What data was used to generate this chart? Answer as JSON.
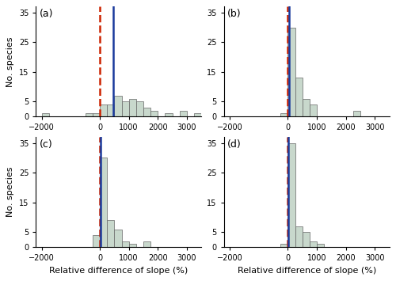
{
  "panels": [
    {
      "label": "(a)",
      "bin_edges": [
        -2000,
        -1750,
        -1500,
        -1250,
        -1000,
        -750,
        -500,
        -250,
        0,
        250,
        500,
        750,
        1000,
        1250,
        1500,
        1750,
        2000,
        2250,
        2500,
        2750,
        3000,
        3250,
        3500
      ],
      "counts": [
        1,
        0,
        0,
        0,
        0,
        0,
        1,
        1,
        4,
        4,
        7,
        5,
        6,
        5,
        3,
        2,
        0,
        1,
        0,
        2,
        0,
        1
      ],
      "red_line": 0,
      "blue_line": 450,
      "xlim": [
        -2200,
        3500
      ],
      "xticks": [
        -2000,
        0,
        1000,
        2000,
        3000
      ],
      "show_xlabel": false,
      "show_ylabel": true
    },
    {
      "label": "(b)",
      "bin_edges": [
        -2000,
        -1750,
        -1500,
        -1250,
        -1000,
        -750,
        -500,
        -250,
        0,
        250,
        500,
        750,
        1000,
        1250,
        1500,
        1750,
        2000,
        2250,
        2500,
        2750,
        3000,
        3250,
        3500
      ],
      "counts": [
        0,
        0,
        0,
        0,
        0,
        0,
        0,
        1,
        30,
        13,
        6,
        4,
        0,
        0,
        0,
        0,
        0,
        2,
        0,
        0,
        0,
        0
      ],
      "red_line": 0,
      "blue_line": 50,
      "xlim": [
        -2200,
        3500
      ],
      "xticks": [
        -2000,
        0,
        1000,
        2000,
        3000
      ],
      "show_xlabel": false,
      "show_ylabel": false
    },
    {
      "label": "(c)",
      "bin_edges": [
        -2000,
        -1750,
        -1500,
        -1250,
        -1000,
        -750,
        -500,
        -250,
        0,
        250,
        500,
        750,
        1000,
        1250,
        1500,
        1750,
        2000,
        2250,
        2500,
        2750,
        3000,
        3250,
        3500
      ],
      "counts": [
        0,
        0,
        0,
        0,
        0,
        0,
        0,
        4,
        30,
        9,
        6,
        2,
        1,
        0,
        2,
        0,
        0,
        0,
        0,
        0,
        0,
        0
      ],
      "red_line": 0,
      "blue_line": 30,
      "xlim": [
        -2200,
        3500
      ],
      "xticks": [
        -2000,
        0,
        1000,
        2000,
        3000
      ],
      "show_xlabel": true,
      "show_ylabel": true
    },
    {
      "label": "(d)",
      "bin_edges": [
        -2000,
        -1750,
        -1500,
        -1250,
        -1000,
        -750,
        -500,
        -250,
        0,
        250,
        500,
        750,
        1000,
        1250,
        1500,
        1750,
        2000,
        2250,
        2500,
        2750,
        3000,
        3250,
        3500
      ],
      "counts": [
        0,
        0,
        0,
        0,
        0,
        0,
        0,
        1,
        35,
        7,
        5,
        2,
        1,
        0,
        0,
        0,
        0,
        0,
        0,
        0,
        0,
        0
      ],
      "red_line": 0,
      "blue_line": 20,
      "xlim": [
        -2200,
        3500
      ],
      "xticks": [
        -2000,
        0,
        1000,
        2000,
        3000
      ],
      "show_xlabel": true,
      "show_ylabel": false
    }
  ],
  "bar_color": "#c8d8cc",
  "bar_edgecolor": "#666666",
  "red_color": "#cc2200",
  "blue_color": "#1a3a9c",
  "ylim": [
    0,
    37
  ],
  "yticks": [
    0,
    5,
    15,
    25,
    35
  ],
  "ylabel": "No. species",
  "xlabel": "Relative difference of slope (%)",
  "figsize": [
    5.0,
    3.55
  ],
  "dpi": 100
}
